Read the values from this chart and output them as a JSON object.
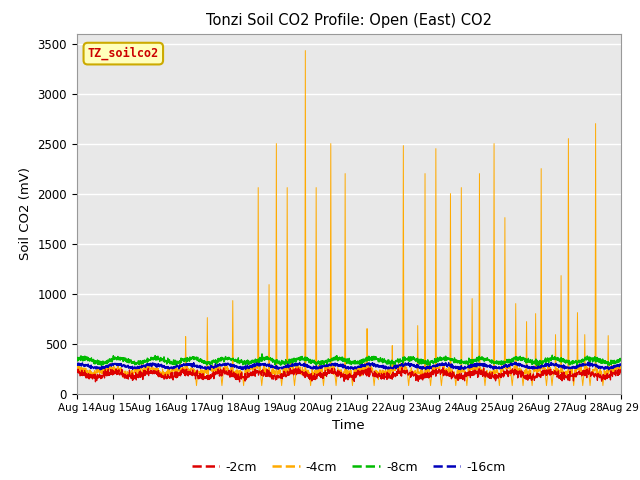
{
  "title": "Tonzi Soil CO2 Profile: Open (East) CO2",
  "ylabel": "Soil CO2 (mV)",
  "xlabel": "Time",
  "xlim": [
    0,
    15
  ],
  "ylim": [
    0,
    3600
  ],
  "yticks": [
    0,
    500,
    1000,
    1500,
    2000,
    2500,
    3000,
    3500
  ],
  "xtick_labels": [
    "Aug 14",
    "Aug 15",
    "Aug 16",
    "Aug 17",
    "Aug 18",
    "Aug 19",
    "Aug 20",
    "Aug 21",
    "Aug 22",
    "Aug 23",
    "Aug 24",
    "Aug 25",
    "Aug 26",
    "Aug 27",
    "Aug 28",
    "Aug 29"
  ],
  "legend_label": "TZ_soilco2",
  "plot_bg_color": "#e8e8e8",
  "fig_bg_color": "#ffffff",
  "grid_color": "#ffffff",
  "colors": {
    "red": "#dd0000",
    "orange": "#ffaa00",
    "green": "#00bb00",
    "blue": "#0000bb"
  },
  "series_labels": [
    "-2cm",
    "-4cm",
    "-8cm",
    "-16cm"
  ],
  "series_colors": [
    "#dd0000",
    "#ffaa00",
    "#00bb00",
    "#0000bb"
  ],
  "annotation_text": "TZ_soilco2",
  "annotation_color": "#cc0000",
  "annotation_bg": "#ffffbb",
  "annotation_edge": "#ccaa00"
}
